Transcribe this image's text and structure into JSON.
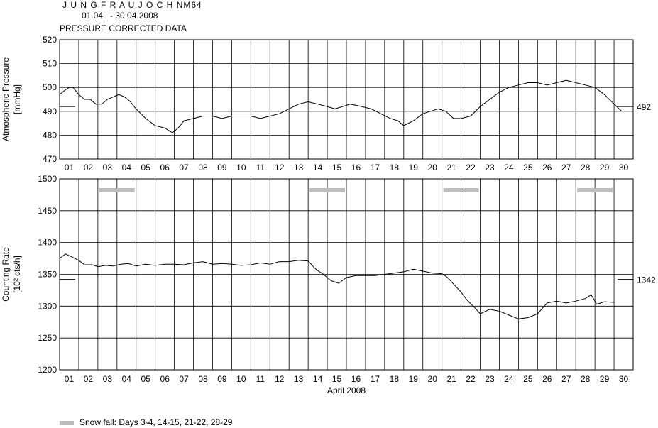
{
  "header": {
    "station": "J U N G F R A U J O C H",
    "code": "NM64",
    "period": "01.04.  - 30.04.2008",
    "subtitle": "PRESSURE CORRECTED DATA"
  },
  "legend": {
    "label": "Snow fall: Days 3-4, 14-15, 21-22, 28-29",
    "color": "#bdbdbd"
  },
  "colors": {
    "line": "#000000",
    "grid": "#000000",
    "snow": "#bdbdbd"
  },
  "chart_data": [
    {
      "type": "line",
      "ylabel_line1": "Atmospheric Pressure",
      "ylabel_line2": "[mmHg]",
      "ylim": [
        470,
        520
      ],
      "yticks": [
        "520",
        "510",
        "500",
        "490",
        "480",
        "470"
      ],
      "xticks": [
        "01",
        "02",
        "03",
        "04",
        "05",
        "06",
        "07",
        "08",
        "09",
        "10",
        "11",
        "12",
        "13",
        "14",
        "15",
        "16",
        "17",
        "18",
        "19",
        "20",
        "21",
        "22",
        "23",
        "24",
        "25",
        "26",
        "27",
        "28",
        "29",
        "30"
      ],
      "xlabel": "",
      "reference_value": "492",
      "grid": true,
      "series": [
        {
          "day": [
            1.0,
            1.3,
            1.5,
            1.7,
            2.0,
            2.3,
            2.6,
            2.9,
            3.2,
            3.5,
            3.8,
            4.1,
            4.4,
            4.7,
            5.0,
            5.5,
            6.0,
            6.5,
            6.9,
            7.2,
            7.5,
            8.0,
            8.5,
            9.0,
            9.5,
            10.0,
            10.5,
            11.0,
            11.5,
            12.0,
            12.5,
            13.0,
            13.5,
            14.0,
            14.5,
            15.0,
            15.4,
            15.8,
            16.2,
            16.8,
            17.3,
            17.8,
            18.3,
            18.7,
            19.0,
            19.5,
            20.0,
            20.4,
            20.8,
            21.2,
            21.6,
            22.0,
            22.5,
            23.0,
            23.5,
            24.0,
            24.5,
            25.0,
            25.5,
            26.0,
            26.5,
            27.0,
            27.5,
            28.0,
            28.5,
            29.0,
            29.5,
            30.0,
            30.4
          ],
          "value": [
            497,
            499,
            500,
            500,
            497,
            495,
            495,
            493,
            493,
            495,
            496,
            497,
            496,
            494,
            491,
            487,
            484,
            483,
            481,
            483,
            486,
            487,
            488,
            488,
            487,
            488,
            488,
            488,
            487,
            488,
            489,
            491,
            493,
            494,
            493,
            492,
            491,
            492,
            493,
            492,
            491,
            489,
            487,
            486,
            484,
            486,
            489,
            490,
            491,
            490,
            487,
            487,
            488,
            492,
            495,
            498,
            500,
            501,
            502,
            502,
            501,
            502,
            503,
            502,
            501,
            500,
            497,
            493,
            490
          ],
          "value_tail": []
        }
      ]
    },
    {
      "type": "line",
      "ylabel_line1": "Counting Rate",
      "ylabel_line2": "[10² cts/h]",
      "ylim": [
        1200,
        1500
      ],
      "yticks": [
        "1500",
        "1450",
        "1400",
        "1350",
        "1300",
        "1250",
        "1200"
      ],
      "xticks": [
        "01",
        "02",
        "03",
        "04",
        "05",
        "06",
        "07",
        "08",
        "09",
        "10",
        "11",
        "12",
        "13",
        "14",
        "15",
        "16",
        "17",
        "18",
        "19",
        "20",
        "21",
        "22",
        "23",
        "24",
        "25",
        "26",
        "27",
        "28",
        "29",
        "30"
      ],
      "xlabel": "April 2008",
      "reference_value": "1342",
      "snow_days": [
        [
          3,
          4
        ],
        [
          14,
          15
        ],
        [
          21,
          22
        ],
        [
          28,
          29
        ]
      ],
      "grid": true,
      "series": [
        {
          "day": [
            1.0,
            1.3,
            1.6,
            2.0,
            2.3,
            2.7,
            3.0,
            3.4,
            3.8,
            4.2,
            4.6,
            5.0,
            5.5,
            6.0,
            6.5,
            7.0,
            7.5,
            8.0,
            8.5,
            9.0,
            9.5,
            10.0,
            10.5,
            11.0,
            11.5,
            12.0,
            12.5,
            13.0,
            13.5,
            14.0,
            14.4,
            14.8,
            15.2,
            15.6,
            16.0,
            16.5,
            17.0,
            17.5,
            18.0,
            18.5,
            19.0,
            19.5,
            20.0,
            20.5,
            21.0,
            21.3,
            21.6,
            22.0,
            22.3,
            22.7,
            23.0,
            23.5,
            24.0,
            24.5,
            25.0,
            25.5,
            26.0,
            26.5,
            27.0,
            27.5,
            28.0,
            28.5,
            28.8,
            29.1,
            29.5,
            30.0
          ],
          "value": [
            1375,
            1382,
            1378,
            1372,
            1365,
            1365,
            1362,
            1364,
            1363,
            1366,
            1367,
            1363,
            1366,
            1364,
            1366,
            1366,
            1365,
            1368,
            1370,
            1366,
            1367,
            1366,
            1364,
            1365,
            1368,
            1366,
            1370,
            1370,
            1372,
            1371,
            1358,
            1350,
            1340,
            1336,
            1345,
            1348,
            1348,
            1348,
            1350,
            1352,
            1354,
            1358,
            1355,
            1352,
            1351,
            1345,
            1335,
            1322,
            1310,
            1298,
            1288,
            1295,
            1292,
            1286,
            1280,
            1282,
            1288,
            1305,
            1308,
            1305,
            1308,
            1312,
            1318,
            1303,
            1307,
            1306
          ]
        }
      ]
    }
  ]
}
